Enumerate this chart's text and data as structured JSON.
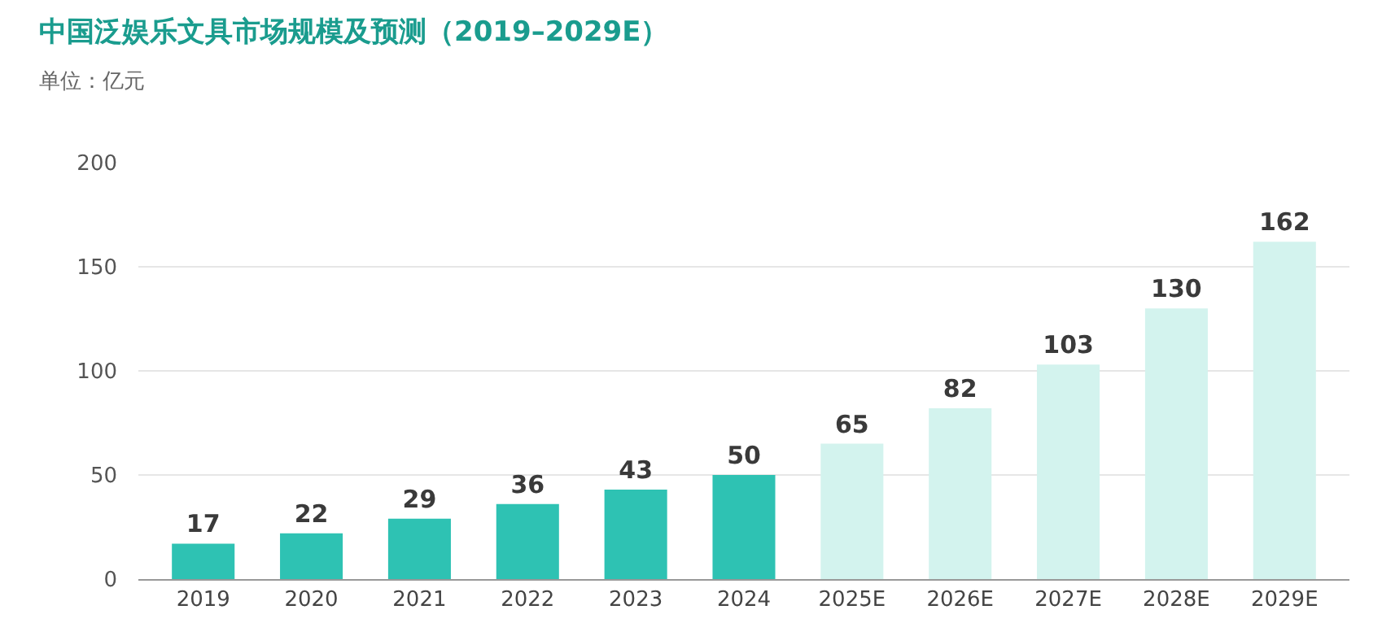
{
  "chart_data": {
    "type": "bar",
    "title": "中国泛娱乐文具市场规模及预测（2019–2029E）",
    "subtitle": "单位：亿元",
    "categories": [
      "2019",
      "2020",
      "2021",
      "2022",
      "2023",
      "2024",
      "2025E",
      "2026E",
      "2027E",
      "2028E",
      "2029E"
    ],
    "values": [
      17,
      22,
      29,
      36,
      43,
      50,
      65,
      82,
      103,
      130,
      162
    ],
    "colors": [
      "#2ec2b3",
      "#2ec2b3",
      "#2ec2b3",
      "#2ec2b3",
      "#2ec2b3",
      "#2ec2b3",
      "#d3f3ee",
      "#d3f3ee",
      "#d3f3ee",
      "#d3f3ee",
      "#d3f3ee"
    ],
    "ylim": [
      0,
      200
    ],
    "yticks": [
      0,
      50,
      100,
      150,
      200
    ],
    "grid": "y",
    "data_labels": true
  }
}
